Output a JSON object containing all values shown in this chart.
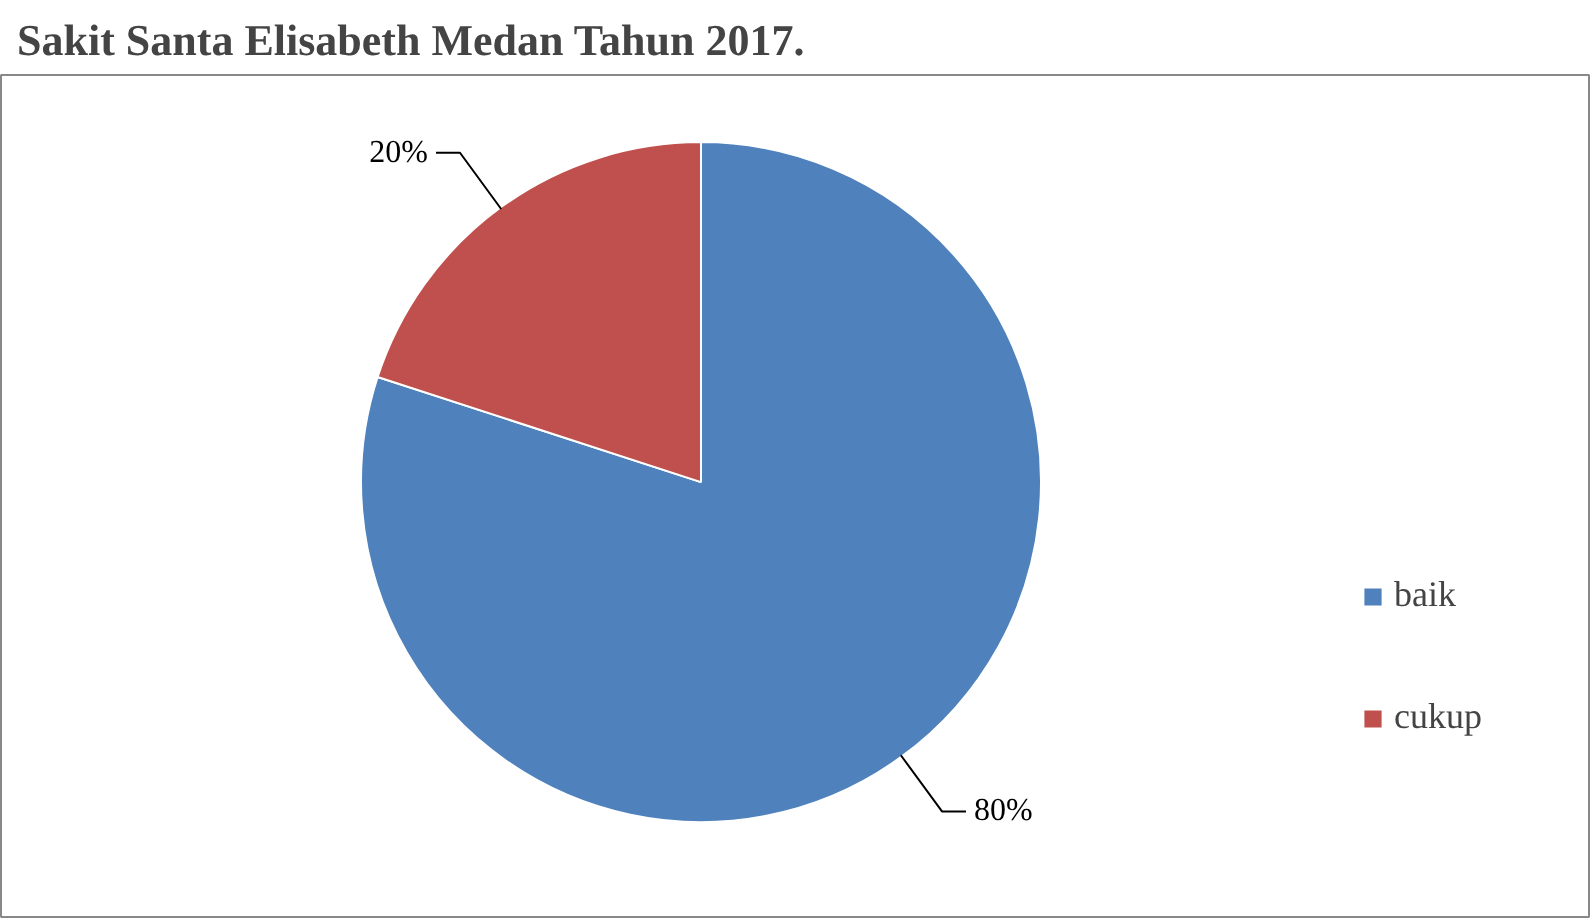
{
  "chart_data": {
    "type": "pie",
    "title": "Sakit Santa Elisabeth Medan Tahun 2017.",
    "categories": [
      "baik",
      "cukup"
    ],
    "values": [
      80,
      20
    ],
    "colors": [
      "#4f81bd",
      "#c0504d"
    ],
    "value_labels": [
      "80%",
      "20%"
    ],
    "legend": "right"
  }
}
